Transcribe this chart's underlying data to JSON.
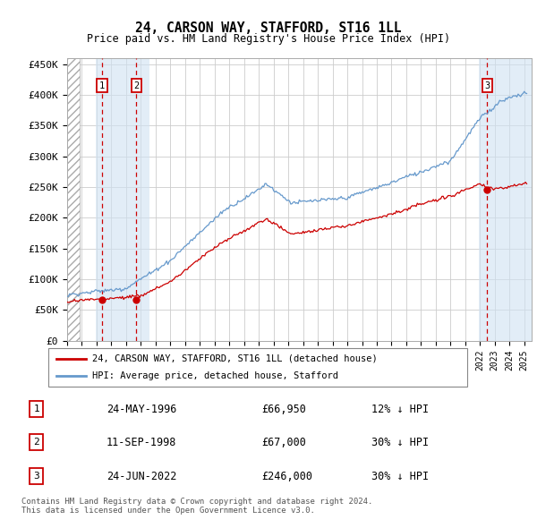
{
  "title": "24, CARSON WAY, STAFFORD, ST16 1LL",
  "subtitle": "Price paid vs. HM Land Registry's House Price Index (HPI)",
  "ylabel_ticks": [
    "£0",
    "£50K",
    "£100K",
    "£150K",
    "£200K",
    "£250K",
    "£300K",
    "£350K",
    "£400K",
    "£450K"
  ],
  "ytick_values": [
    0,
    50000,
    100000,
    150000,
    200000,
    250000,
    300000,
    350000,
    400000,
    450000
  ],
  "ylim": [
    0,
    460000
  ],
  "xlim_start": 1994.0,
  "xlim_end": 2025.5,
  "hpi_color": "#6699cc",
  "price_color": "#cc0000",
  "sale_marker_color": "#cc0000",
  "vline_color": "#cc0000",
  "shade_color": "#cfe2f3",
  "grid_color": "#cccccc",
  "sales": [
    {
      "date_num": 1996.38,
      "price": 66950,
      "label": "1"
    },
    {
      "date_num": 1998.69,
      "price": 67000,
      "label": "2"
    },
    {
      "date_num": 2022.48,
      "price": 246000,
      "label": "3"
    }
  ],
  "legend_entries": [
    {
      "label": "24, CARSON WAY, STAFFORD, ST16 1LL (detached house)",
      "color": "#cc0000"
    },
    {
      "label": "HPI: Average price, detached house, Stafford",
      "color": "#6699cc"
    }
  ],
  "table_rows": [
    {
      "num": "1",
      "date": "24-MAY-1996",
      "price": "£66,950",
      "pct": "12% ↓ HPI"
    },
    {
      "num": "2",
      "date": "11-SEP-1998",
      "price": "£67,000",
      "pct": "30% ↓ HPI"
    },
    {
      "num": "3",
      "date": "24-JUN-2022",
      "price": "£246,000",
      "pct": "30% ↓ HPI"
    }
  ],
  "footnote": "Contains HM Land Registry data © Crown copyright and database right 2024.\nThis data is licensed under the Open Government Licence v3.0.",
  "hatch_end": 1994.83,
  "shade_regions": [
    [
      1995.92,
      1999.58
    ]
  ],
  "shade3_region": [
    2021.92,
    2025.5
  ]
}
